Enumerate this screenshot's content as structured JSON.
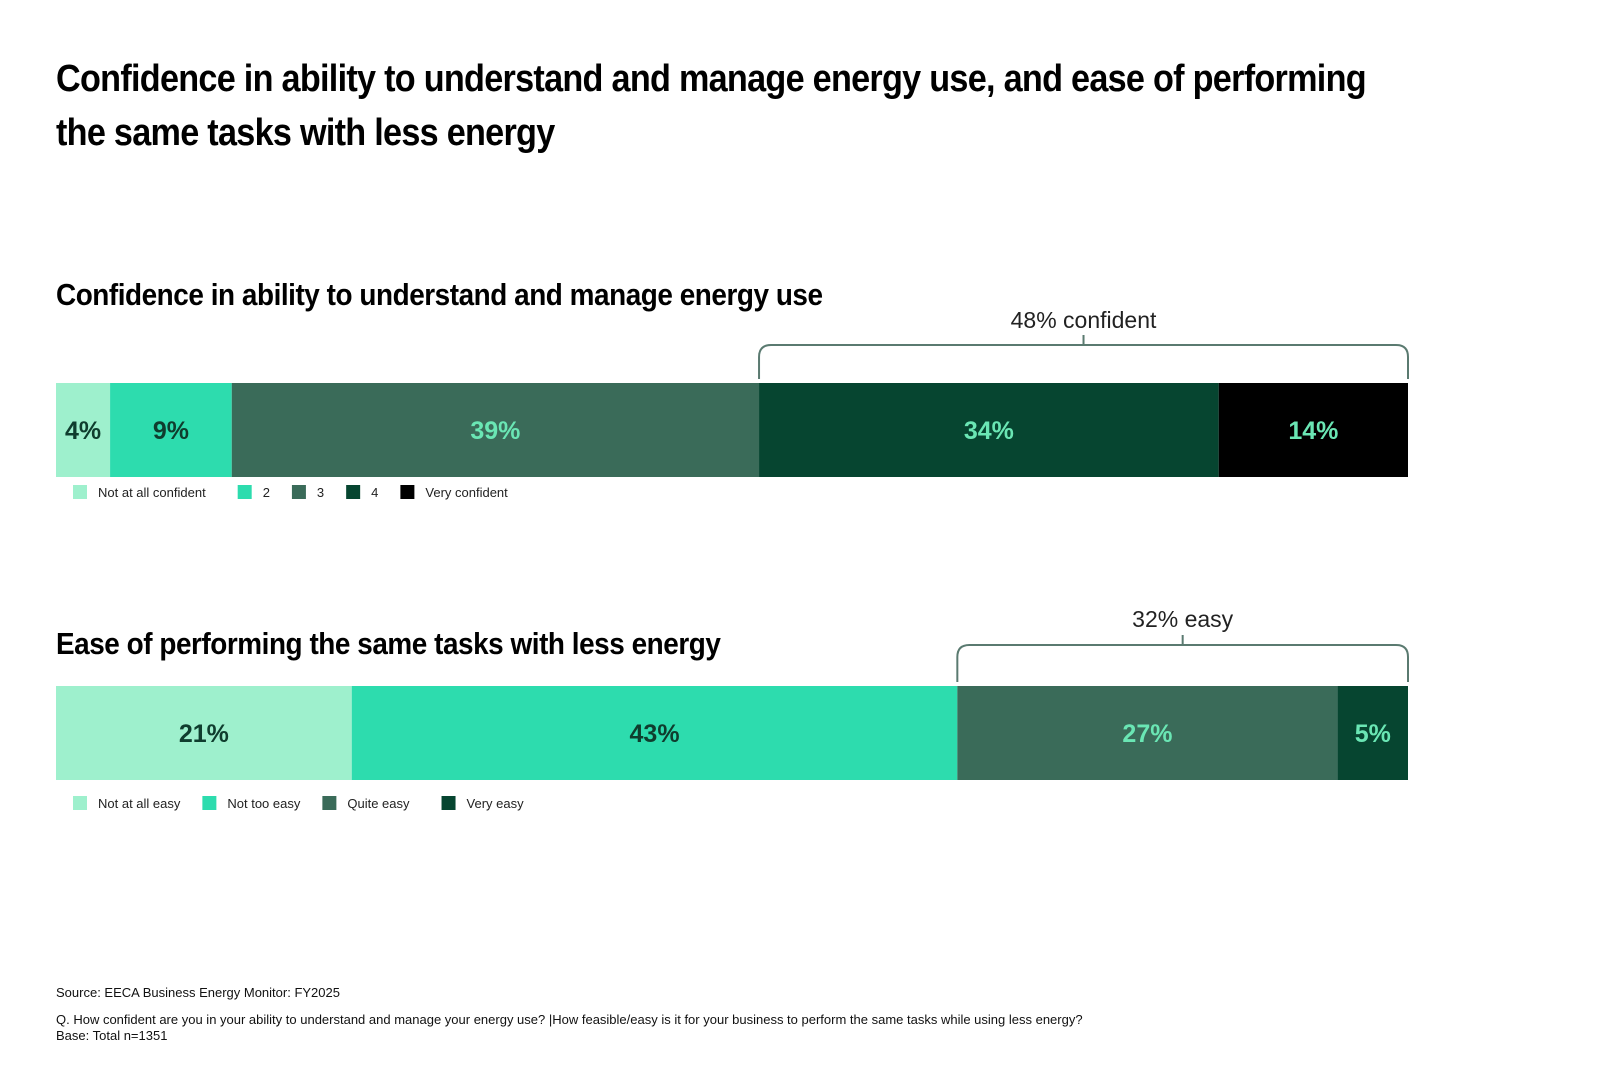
{
  "title": "Confidence in ability to understand and manage energy use, and ease of performing the same tasks with less energy",
  "chart_data": [
    {
      "type": "bar",
      "orientation": "horizontal-stacked-100",
      "title": "Confidence in ability to understand and manage energy use",
      "categories": [
        "Not at all confident",
        "2",
        "3",
        "4",
        "Very confident"
      ],
      "values": [
        4,
        9,
        39,
        34,
        14
      ],
      "value_labels": [
        "4%",
        "9%",
        "39%",
        "34%",
        "14%"
      ],
      "colors": [
        "#9ef0cd",
        "#2ddcae",
        "#3a6b59",
        "#064530",
        "#000000"
      ],
      "label_colors": [
        "#0f3d2e",
        "#0f3d2e",
        "#6ae6b4",
        "#6ae6b4",
        "#6ae6b4"
      ],
      "bracket": {
        "label": "48% confident",
        "from_index": 3,
        "to_index": 4
      },
      "legend": "bottom-left"
    },
    {
      "type": "bar",
      "orientation": "horizontal-stacked-100",
      "title": "Ease of performing the same tasks with less energy",
      "categories": [
        "Not at all easy",
        "Not too easy",
        "Quite easy",
        "Very easy"
      ],
      "values": [
        21,
        43,
        27,
        5
      ],
      "value_labels": [
        "21%",
        "43%",
        "27%",
        "5%"
      ],
      "colors": [
        "#9ef0cd",
        "#2ddcae",
        "#3a6b59",
        "#064530"
      ],
      "label_colors": [
        "#0f3d2e",
        "#0f3d2e",
        "#6ae6b4",
        "#6ae6b4"
      ],
      "bracket": {
        "label": "32% easy",
        "from_index": 2,
        "to_index": 3
      },
      "legend": "bottom-left"
    }
  ],
  "footer": {
    "source": "Source: EECA Business Energy Monitor: FY2025",
    "question": "Q. How confident are you in your ability to understand and manage your energy use? |How feasible/easy is it for your business to perform the same tasks while using less energy?",
    "base": "Base: Total n=1351"
  },
  "colors": {
    "bracket": "#5a7a70",
    "legend_text": "#222222"
  }
}
